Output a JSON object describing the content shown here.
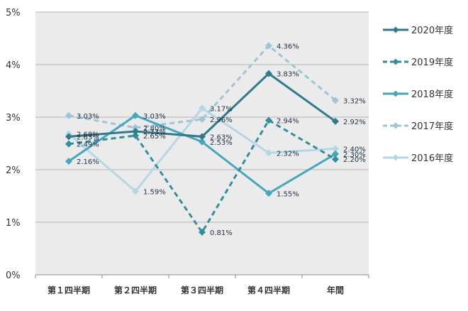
{
  "chart_data": {
    "type": "line",
    "categories": [
      "第１四半期",
      "第２四半期",
      "第３四半期",
      "第４四半期",
      "年間"
    ],
    "yticks": [
      "0%",
      "1%",
      "2%",
      "3%",
      "4%",
      "5%"
    ],
    "ylim": [
      0,
      5
    ],
    "grid": true,
    "legend_position": "right",
    "series": [
      {
        "name": "2020年度",
        "values": [
          2.63,
          2.73,
          2.63,
          3.83,
          2.92
        ],
        "labels": [
          "2.63%",
          "2.73%",
          "2.63%",
          "3.83%",
          "2.92%"
        ],
        "color": "#2e7b8c",
        "dashed": false
      },
      {
        "name": "2019年度",
        "values": [
          2.49,
          2.65,
          0.81,
          2.94,
          2.2
        ],
        "labels": [
          "2.49%",
          "2.65%",
          "0.81%",
          "2.94%",
          "2.20%"
        ],
        "color": "#2f8f9b",
        "dashed": true
      },
      {
        "name": "2018年度",
        "values": [
          2.16,
          3.03,
          2.53,
          1.55,
          2.3
        ],
        "labels": [
          "2.16%",
          "3.03%",
          "2.53%",
          "1.55%",
          "2.30%"
        ],
        "color": "#45a7bd",
        "dashed": false
      },
      {
        "name": "2017年度",
        "values": [
          3.03,
          2.8,
          2.96,
          4.36,
          3.32
        ],
        "labels": [
          "3.03%",
          "2.80%",
          "2.96%",
          "4.36%",
          "3.32%"
        ],
        "color": "#9cc6d6",
        "dashed": true
      },
      {
        "name": "2016年度",
        "values": [
          2.68,
          1.59,
          3.17,
          2.32,
          2.4
        ],
        "labels": [
          "2.68%",
          "1.59%",
          "3.17%",
          "2.32%",
          "2.40%"
        ],
        "color": "#b3d7e3",
        "dashed": false
      }
    ]
  }
}
